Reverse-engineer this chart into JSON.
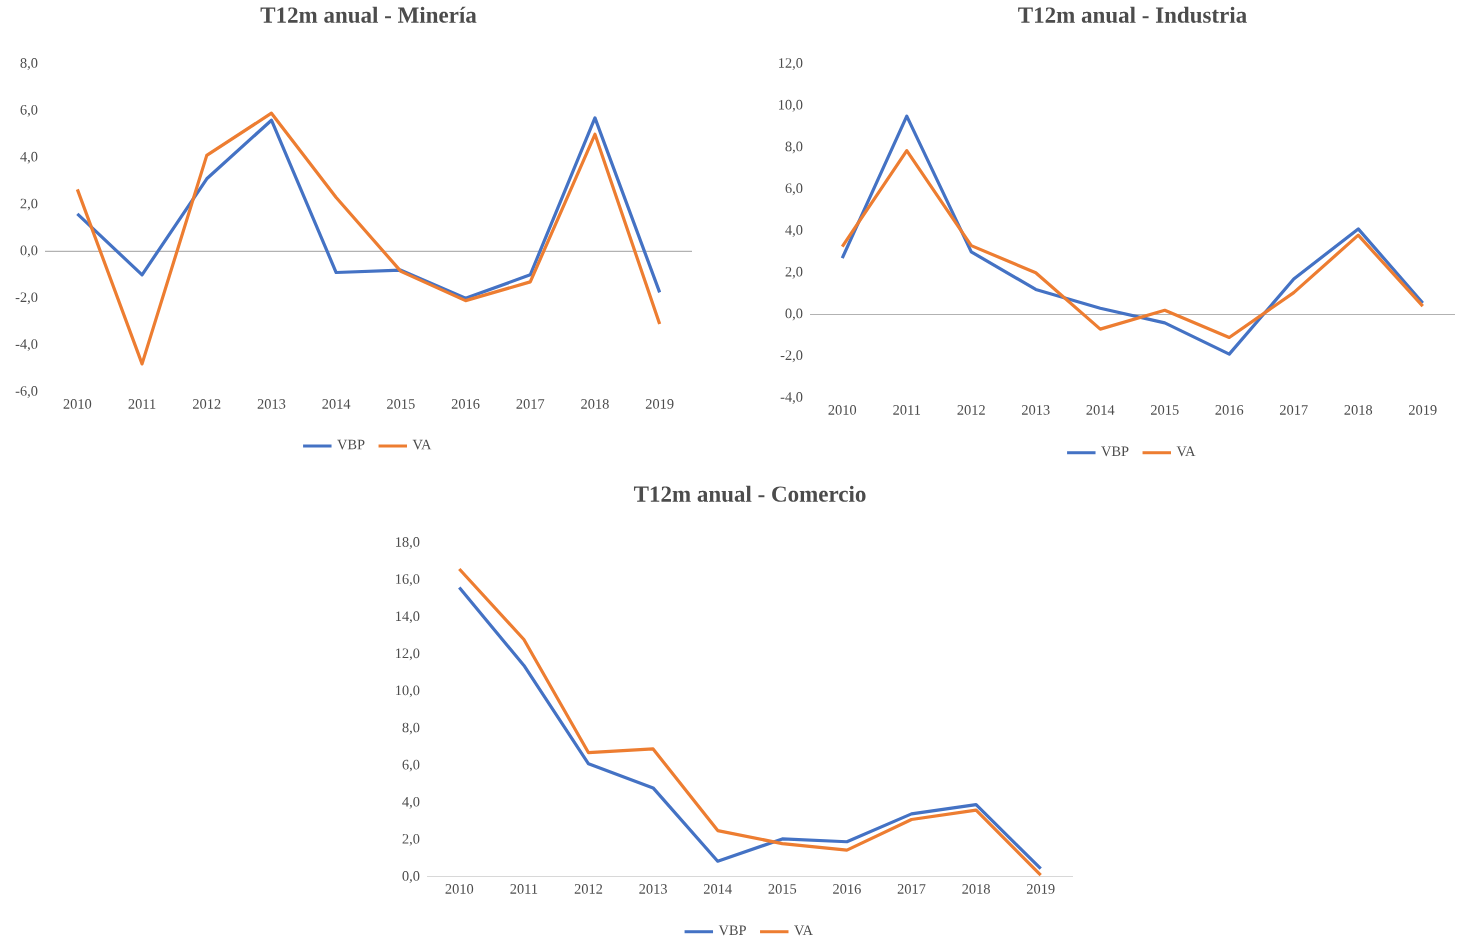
{
  "chart_data": [
    {
      "type": "line",
      "title": "T12m anual - Minería",
      "categories": [
        "2010",
        "2011",
        "2012",
        "2013",
        "2014",
        "2015",
        "2016",
        "2017",
        "2018",
        "2019"
      ],
      "series": [
        {
          "name": "VBP",
          "color": "#4472c4",
          "values": [
            1.6,
            -1.0,
            3.1,
            5.6,
            -0.9,
            -0.8,
            -2.0,
            -1.0,
            5.7,
            -1.75
          ]
        },
        {
          "name": "VA",
          "color": "#ed7d31",
          "values": [
            2.65,
            -4.8,
            4.1,
            5.9,
            2.3,
            -0.85,
            -2.1,
            -1.3,
            5.0,
            -3.1
          ]
        }
      ],
      "ylim": [
        -6,
        8
      ],
      "yticks": [
        {
          "value": -6,
          "label": "-6,0"
        },
        {
          "value": -4,
          "label": "-4,0"
        },
        {
          "value": -2,
          "label": "-2,0"
        },
        {
          "value": 0,
          "label": "0,0"
        },
        {
          "value": 2,
          "label": "2,0"
        },
        {
          "value": 4,
          "label": "4,0"
        },
        {
          "value": 6,
          "label": "6,0"
        },
        {
          "value": 8,
          "label": "8,0"
        }
      ],
      "legend": "bottom",
      "marker": "none",
      "line_style": "solid"
    },
    {
      "type": "line",
      "title": "T12m anual - Industria",
      "categories": [
        "2010",
        "2011",
        "2012",
        "2013",
        "2014",
        "2015",
        "2016",
        "2017",
        "2018",
        "2019"
      ],
      "series": [
        {
          "name": "VBP",
          "color": "#4472c4",
          "values": [
            2.7,
            9.5,
            3.0,
            1.2,
            0.3,
            -0.4,
            -1.9,
            1.7,
            4.1,
            0.55
          ]
        },
        {
          "name": "VA",
          "color": "#ed7d31",
          "values": [
            3.25,
            7.85,
            3.3,
            2.0,
            -0.7,
            0.2,
            -1.1,
            1.05,
            3.8,
            0.4
          ]
        }
      ],
      "ylim": [
        -4,
        12
      ],
      "yticks": [
        {
          "value": -4,
          "label": "-4,0"
        },
        {
          "value": -2,
          "label": "-2,0"
        },
        {
          "value": 0,
          "label": "0,0"
        },
        {
          "value": 2,
          "label": "2,0"
        },
        {
          "value": 4,
          "label": "4,0"
        },
        {
          "value": 6,
          "label": "6,0"
        },
        {
          "value": 8,
          "label": "8,0"
        },
        {
          "value": 10,
          "label": "10,0"
        },
        {
          "value": 12,
          "label": "12,0"
        }
      ],
      "legend": "bottom",
      "marker": "none",
      "line_style": "solid"
    },
    {
      "type": "line",
      "title": "T12m anual - Comercio",
      "categories": [
        "2010",
        "2011",
        "2012",
        "2013",
        "2014",
        "2015",
        "2016",
        "2017",
        "2018",
        "2019"
      ],
      "series": [
        {
          "name": "VBP",
          "color": "#4472c4",
          "values": [
            15.6,
            11.4,
            6.1,
            4.8,
            0.85,
            2.05,
            1.9,
            3.4,
            3.9,
            0.45
          ]
        },
        {
          "name": "VA",
          "color": "#ed7d31",
          "values": [
            16.6,
            12.8,
            6.7,
            6.9,
            2.5,
            1.8,
            1.45,
            3.1,
            3.6,
            0.1
          ]
        }
      ],
      "ylim": [
        0,
        18
      ],
      "yticks": [
        {
          "value": 0,
          "label": "0,0"
        },
        {
          "value": 2,
          "label": "2,0"
        },
        {
          "value": 4,
          "label": "4,0"
        },
        {
          "value": 6,
          "label": "6,0"
        },
        {
          "value": 8,
          "label": "8,0"
        },
        {
          "value": 10,
          "label": "10,0"
        },
        {
          "value": 12,
          "label": "12,0"
        },
        {
          "value": 14,
          "label": "14,0"
        },
        {
          "value": 16,
          "label": "16,0"
        },
        {
          "value": 18,
          "label": "18,0"
        }
      ],
      "legend": "bottom",
      "marker": "none",
      "line_style": "solid"
    }
  ]
}
